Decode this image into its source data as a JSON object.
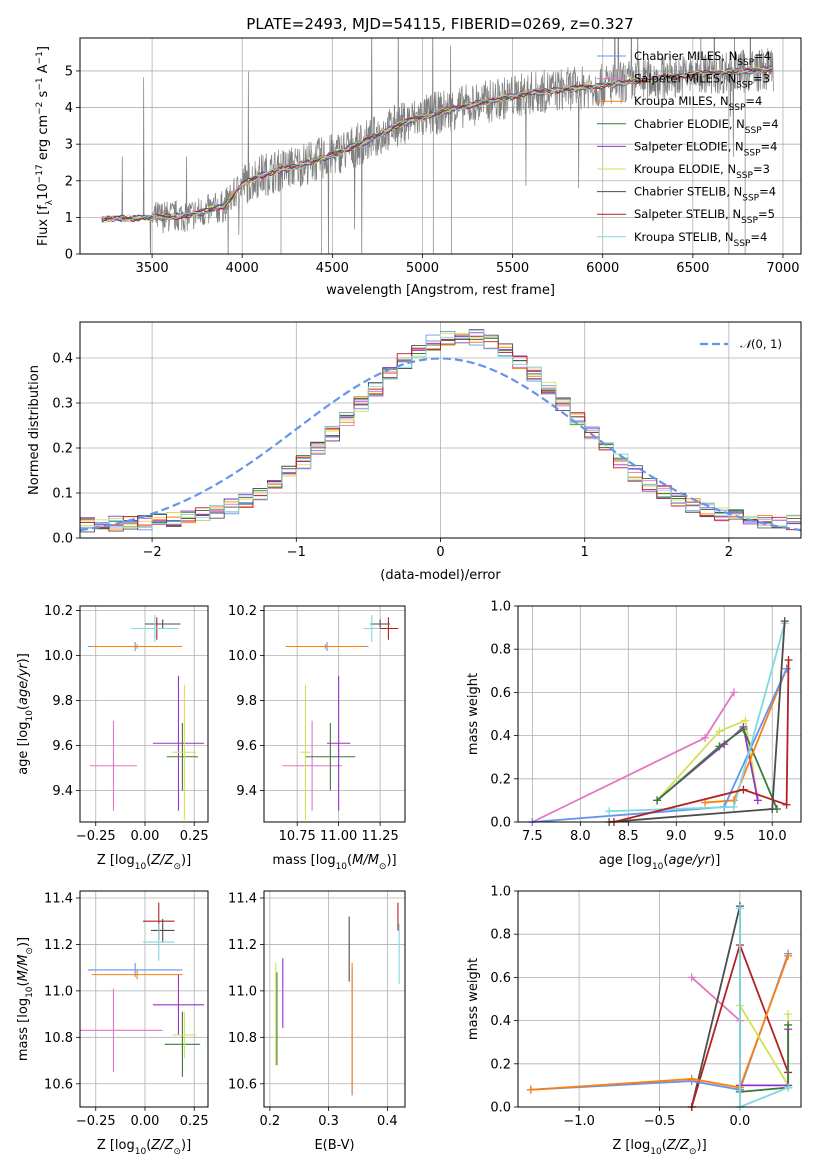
{
  "figure": {
    "title": "PLATE=2493, MJD=54115, FIBERID=0269, z=0.327"
  },
  "colors": {
    "spectrum": "#808080",
    "models": [
      "#6495ed",
      "#e377c2",
      "#ff7f0e",
      "#3a7a3a",
      "#9932cc",
      "#d4e157",
      "#4d4d4d",
      "#b22222",
      "#80d8e0"
    ]
  },
  "chart_data": [
    {
      "id": "spectrum",
      "type": "line",
      "xlabel": "wavelength [Angstrom, rest frame]",
      "ylabel": "Flux [f_λ 10^-17 erg cm^-2 s^-1 A^-1]",
      "xlim": [
        3100,
        7100
      ],
      "ylim": [
        0,
        5.9
      ],
      "xticks": [
        3500,
        4000,
        4500,
        5000,
        5500,
        6000,
        6500,
        7000
      ],
      "yticks": [
        0,
        1,
        2,
        3,
        4,
        5
      ],
      "grid": true,
      "legend_position": "right",
      "continuum_x": [
        3220,
        3500,
        3700,
        3900,
        4000,
        4100,
        4300,
        4500,
        4700,
        4850,
        5000,
        5200,
        5400,
        5600,
        5800,
        6000,
        6200,
        6400,
        6600,
        6800,
        6950
      ],
      "continuum_y": [
        0.95,
        1.0,
        1.05,
        1.3,
        1.9,
        2.15,
        2.4,
        2.7,
        3.1,
        3.5,
        3.75,
        4.0,
        4.2,
        4.4,
        4.5,
        4.6,
        4.75,
        4.85,
        4.95,
        5.0,
        5.05
      ],
      "series": [
        {
          "name": "Chabrier MILES, N_SSP=4",
          "color": "#6495ed"
        },
        {
          "name": "Salpeter MILES, N_SSP=3",
          "color": "#e377c2"
        },
        {
          "name": "Kroupa MILES, N_SSP=4",
          "color": "#ff7f0e"
        },
        {
          "name": "Chabrier ELODIE, N_SSP=4",
          "color": "#3a7a3a"
        },
        {
          "name": "Salpeter ELODIE, N_SSP=4",
          "color": "#9932cc"
        },
        {
          "name": "Kroupa ELODIE, N_SSP=3",
          "color": "#d4e157"
        },
        {
          "name": "Chabrier STELIB, N_SSP=4",
          "color": "#4d4d4d"
        },
        {
          "name": "Salpeter STELIB, N_SSP=5",
          "color": "#b22222"
        },
        {
          "name": "Kroupa STELIB, N_SSP=4",
          "color": "#80d8e0"
        }
      ]
    },
    {
      "id": "residual-histogram",
      "type": "line",
      "xlabel": "(data-model)/error",
      "ylabel": "Normed distribution",
      "xlim": [
        -2.5,
        2.5
      ],
      "ylim": [
        0,
        0.48
      ],
      "xticks": [
        -2,
        -1,
        0,
        1,
        2
      ],
      "yticks": [
        0.0,
        0.1,
        0.2,
        0.3,
        0.4
      ],
      "grid": true,
      "legend_position": "top-right",
      "legend": "𝒩(0,1)"
    },
    {
      "id": "age-vs-Z",
      "type": "scatter",
      "xlabel": "Z [log10(Z/Z⊙)]",
      "ylabel": "age [log10(age/yr)]",
      "xlim": [
        -0.33,
        0.32
      ],
      "ylim": [
        9.26,
        10.22
      ],
      "xticks": [
        -0.25,
        0.0,
        0.25
      ],
      "xticklabels": [
        "−0.25",
        "0.00",
        "0.25"
      ],
      "yticks": [
        9.4,
        9.6,
        9.8,
        10.0,
        10.2
      ],
      "grid": true,
      "points": [
        {
          "x": -0.05,
          "y": 10.04,
          "xerr": 0.24,
          "yerr": 0.02,
          "color": "#6495ed"
        },
        {
          "x": -0.16,
          "y": 9.51,
          "xerr": 0.12,
          "yerr": 0.2,
          "color": "#e377c2"
        },
        {
          "x": -0.04,
          "y": 10.04,
          "xerr": 0.23,
          "yerr": 0.01,
          "color": "#ff7f0e"
        },
        {
          "x": 0.19,
          "y": 9.55,
          "xerr": 0.08,
          "yerr": 0.15,
          "color": "#3a7a3a"
        },
        {
          "x": 0.17,
          "y": 9.61,
          "xerr": 0.13,
          "yerr": 0.3,
          "color": "#9932cc"
        },
        {
          "x": 0.2,
          "y": 9.57,
          "xerr": 0.06,
          "yerr": 0.3,
          "color": "#d4e157"
        },
        {
          "x": 0.09,
          "y": 10.14,
          "xerr": 0.09,
          "yerr": 0.02,
          "color": "#4d4d4d"
        },
        {
          "x": 0.06,
          "y": 10.12,
          "xerr": 0.07,
          "yerr": 0.05,
          "color": "#b22222"
        },
        {
          "x": 0.05,
          "y": 10.12,
          "xerr": 0.12,
          "yerr": 0.06,
          "color": "#80d8e0"
        }
      ]
    },
    {
      "id": "age-vs-mass",
      "type": "scatter",
      "xlabel": "mass [log10(M/M⊙)]",
      "ylabel": "",
      "xlim": [
        10.55,
        11.4
      ],
      "ylim": [
        9.26,
        10.22
      ],
      "xticks": [
        10.75,
        11.0,
        11.25
      ],
      "xticklabels": [
        "10.75",
        "11.00",
        "11.25"
      ],
      "yticks": [
        9.4,
        9.6,
        9.8,
        10.0,
        10.2
      ],
      "grid": true,
      "points": [
        {
          "x": 10.93,
          "y": 10.04,
          "xerr": 0.25,
          "yerr": 0.02,
          "color": "#6495ed"
        },
        {
          "x": 10.84,
          "y": 9.51,
          "xerr": 0.18,
          "yerr": 0.2,
          "color": "#e377c2"
        },
        {
          "x": 10.92,
          "y": 10.04,
          "xerr": 0.24,
          "yerr": 0.01,
          "color": "#ff7f0e"
        },
        {
          "x": 10.95,
          "y": 9.55,
          "xerr": 0.15,
          "yerr": 0.15,
          "color": "#3a7a3a"
        },
        {
          "x": 11.0,
          "y": 9.61,
          "xerr": 0.07,
          "yerr": 0.3,
          "color": "#9932cc"
        },
        {
          "x": 10.8,
          "y": 9.57,
          "xerr": 0.03,
          "yerr": 0.3,
          "color": "#d4e157"
        },
        {
          "x": 11.25,
          "y": 10.14,
          "xerr": 0.06,
          "yerr": 0.02,
          "color": "#4d4d4d"
        },
        {
          "x": 11.3,
          "y": 10.12,
          "xerr": 0.06,
          "yerr": 0.05,
          "color": "#b22222"
        },
        {
          "x": 11.2,
          "y": 10.12,
          "xerr": 0.05,
          "yerr": 0.06,
          "color": "#80d8e0"
        }
      ]
    },
    {
      "id": "mass-weight-vs-age",
      "type": "line",
      "xlabel": "age [log10(age/yr)]",
      "ylabel": "mass weight",
      "xlim": [
        7.35,
        10.3
      ],
      "ylim": [
        0,
        1.0
      ],
      "xticks": [
        7.5,
        8.0,
        8.5,
        9.0,
        9.5,
        10.0
      ],
      "yticks": [
        0.0,
        0.2,
        0.4,
        0.6,
        0.8,
        1.0
      ],
      "grid": true,
      "series": [
        {
          "color": "#e377c2",
          "x": [
            7.5,
            9.3,
            9.6
          ],
          "y": [
            0.0,
            0.39,
            0.6
          ]
        },
        {
          "color": "#d4e157",
          "x": [
            8.8,
            9.45,
            9.72,
            9.85
          ],
          "y": [
            0.1,
            0.42,
            0.47,
            0.1
          ]
        },
        {
          "color": "#9932cc",
          "x": [
            8.8,
            9.5,
            9.7,
            9.85
          ],
          "y": [
            0.1,
            0.36,
            0.44,
            0.1
          ]
        },
        {
          "color": "#3a7a3a",
          "x": [
            8.8,
            9.45,
            9.7,
            10.05
          ],
          "y": [
            0.1,
            0.35,
            0.43,
            0.06
          ]
        },
        {
          "color": "#ff7f0e",
          "x": [
            9.3,
            9.6,
            10.15
          ],
          "y": [
            0.09,
            0.1,
            0.71
          ]
        },
        {
          "color": "#6495ed",
          "x": [
            7.5,
            9.5,
            10.15
          ],
          "y": [
            0.0,
            0.07,
            0.71
          ]
        },
        {
          "color": "#80d8e0",
          "x": [
            8.3,
            9.6,
            10.13
          ],
          "y": [
            0.05,
            0.07,
            0.92
          ]
        },
        {
          "color": "#4d4d4d",
          "x": [
            8.3,
            10.0,
            10.13
          ],
          "y": [
            0.0,
            0.06,
            0.93
          ]
        },
        {
          "color": "#b22222",
          "x": [
            8.35,
            9.7,
            10.15,
            10.17
          ],
          "y": [
            0.0,
            0.15,
            0.08,
            0.75
          ]
        }
      ]
    },
    {
      "id": "mass-vs-Z",
      "type": "scatter",
      "xlabel": "Z [log10(Z/Z⊙)]",
      "ylabel": "mass [log10(M/M⊙)]",
      "xlim": [
        -0.33,
        0.32
      ],
      "ylim": [
        10.5,
        11.43
      ],
      "xticks": [
        -0.25,
        0.0,
        0.25
      ],
      "xticklabels": [
        "−0.25",
        "0.00",
        "0.25"
      ],
      "yticks": [
        10.6,
        10.8,
        11.0,
        11.2,
        11.4
      ],
      "grid": true,
      "points": [
        {
          "x": -0.05,
          "y": 11.09,
          "xerr": 0.24,
          "yerr": 0.03,
          "color": "#6495ed"
        },
        {
          "x": -0.16,
          "y": 10.83,
          "xerr": 0.25,
          "yerr": 0.18,
          "color": "#e377c2"
        },
        {
          "x": -0.04,
          "y": 11.07,
          "xerr": 0.23,
          "yerr": 0.02,
          "color": "#ff7f0e"
        },
        {
          "x": 0.19,
          "y": 10.77,
          "xerr": 0.09,
          "yerr": 0.14,
          "color": "#3a7a3a"
        },
        {
          "x": 0.17,
          "y": 10.94,
          "xerr": 0.13,
          "yerr": 0.13,
          "color": "#9932cc"
        },
        {
          "x": 0.2,
          "y": 10.81,
          "xerr": 0.06,
          "yerr": 0.1,
          "color": "#d4e157"
        },
        {
          "x": 0.09,
          "y": 11.26,
          "xerr": 0.06,
          "yerr": 0.05,
          "color": "#4d4d4d"
        },
        {
          "x": 0.07,
          "y": 11.3,
          "xerr": 0.08,
          "yerr": 0.08,
          "color": "#b22222"
        },
        {
          "x": 0.07,
          "y": 11.21,
          "xerr": 0.08,
          "yerr": 0.08,
          "color": "#80d8e0"
        }
      ]
    },
    {
      "id": "mass-vs-ebv",
      "type": "scatter",
      "xlabel": "E(B-V)",
      "ylabel": "",
      "xlim": [
        0.19,
        0.43
      ],
      "ylim": [
        10.5,
        11.43
      ],
      "xticks": [
        0.2,
        0.3,
        0.4
      ],
      "xticklabels": [
        "0.2",
        "0.3",
        "0.4"
      ],
      "yticks": [
        10.6,
        10.8,
        11.0,
        11.2,
        11.4
      ],
      "grid": true,
      "points": [
        {
          "x": 0.34,
          "y": 10.82,
          "yerr": 0.27,
          "color": "#6495ed"
        },
        {
          "x": 0.34,
          "y": 10.84,
          "yerr": 0.28,
          "color": "#ff7f0e"
        },
        {
          "x": 0.212,
          "y": 10.88,
          "yerr": 0.2,
          "color": "#3a7a3a"
        },
        {
          "x": 0.222,
          "y": 10.99,
          "yerr": 0.15,
          "color": "#9932cc"
        },
        {
          "x": 0.21,
          "y": 10.9,
          "yerr": 0.22,
          "color": "#d4e157"
        },
        {
          "x": 0.335,
          "y": 11.18,
          "yerr": 0.14,
          "color": "#4d4d4d"
        },
        {
          "x": 0.418,
          "y": 11.32,
          "yerr": 0.06,
          "color": "#b22222"
        },
        {
          "x": 0.42,
          "y": 11.16,
          "yerr": 0.13,
          "color": "#80d8e0"
        }
      ]
    },
    {
      "id": "mass-weight-vs-Z",
      "type": "line",
      "xlabel": "Z [log10(Z/Z⊙)]",
      "ylabel": "mass weight",
      "xlim": [
        -1.38,
        0.38
      ],
      "ylim": [
        0,
        1.0
      ],
      "xticks": [
        -1.0,
        -0.5,
        0.0
      ],
      "xticklabels": [
        "−1.0",
        "−0.5",
        "0.0"
      ],
      "yticks": [
        0.0,
        0.2,
        0.4,
        0.6,
        0.8,
        1.0
      ],
      "grid": true,
      "series": [
        {
          "color": "#e377c2",
          "x": [
            -0.3,
            0.0,
            0.0
          ],
          "y": [
            0.6,
            0.4,
            0.0
          ]
        },
        {
          "color": "#4d4d4d",
          "x": [
            -0.3,
            0.0,
            0.0
          ],
          "y": [
            0.0,
            0.93,
            0.08
          ]
        },
        {
          "color": "#b22222",
          "x": [
            -0.3,
            0.0,
            0.3
          ],
          "y": [
            0.0,
            0.75,
            0.16
          ]
        },
        {
          "color": "#6495ed",
          "x": [
            -1.3,
            -0.3,
            0.0,
            0.3
          ],
          "y": [
            0.08,
            0.12,
            0.08,
            0.71
          ]
        },
        {
          "color": "#ff7f0e",
          "x": [
            -1.3,
            -0.3,
            0.0,
            0.3
          ],
          "y": [
            0.08,
            0.13,
            0.09,
            0.7
          ]
        },
        {
          "color": "#d4e157",
          "x": [
            0.0,
            0.3,
            0.3
          ],
          "y": [
            0.47,
            0.1,
            0.43
          ]
        },
        {
          "color": "#9932cc",
          "x": [
            0.0,
            0.3,
            0.3
          ],
          "y": [
            0.1,
            0.1,
            0.36
          ]
        },
        {
          "color": "#3a7a3a",
          "x": [
            0.0,
            0.3,
            0.3
          ],
          "y": [
            0.07,
            0.09,
            0.38
          ]
        },
        {
          "color": "#80d8e0",
          "x": [
            0.0,
            0.0,
            0.3
          ],
          "y": [
            0.92,
            0.0,
            0.09
          ]
        }
      ]
    }
  ]
}
